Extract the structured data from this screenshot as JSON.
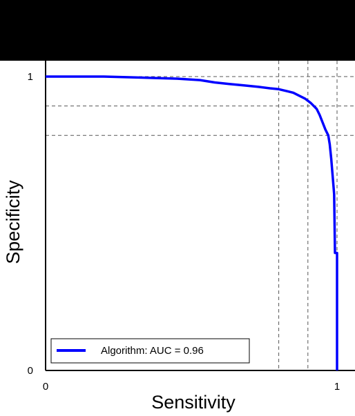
{
  "chart_data": {
    "type": "line",
    "xlabel": "Sensitivity",
    "ylabel": "Specificity",
    "xlim": [
      0,
      1
    ],
    "ylim": [
      0,
      1
    ],
    "x_ticks": [
      {
        "value": 0,
        "label": "0"
      },
      {
        "value": 1,
        "label": "1"
      }
    ],
    "y_ticks": [
      {
        "value": 0,
        "label": "0"
      },
      {
        "value": 1,
        "label": "1"
      }
    ],
    "reference_lines": {
      "vertical": [
        0.8,
        0.9,
        1.0
      ],
      "horizontal": [
        0.9,
        0.8,
        1.0
      ],
      "style": "dashed",
      "color": "#555555"
    },
    "legend": {
      "placement": "bottom-left",
      "entries": [
        "Algorithm: AUC = 0.96"
      ]
    },
    "series": [
      {
        "name": "Algorithm: AUC = 0.96",
        "color": "#0000ff",
        "points": [
          [
            0.0,
            1.0
          ],
          [
            0.2,
            1.0
          ],
          [
            0.31,
            0.997
          ],
          [
            0.45,
            0.993
          ],
          [
            0.53,
            0.988
          ],
          [
            0.58,
            0.98
          ],
          [
            0.63,
            0.975
          ],
          [
            0.68,
            0.97
          ],
          [
            0.73,
            0.965
          ],
          [
            0.77,
            0.96
          ],
          [
            0.8,
            0.957
          ],
          [
            0.83,
            0.95
          ],
          [
            0.85,
            0.945
          ],
          [
            0.87,
            0.935
          ],
          [
            0.89,
            0.925
          ],
          [
            0.91,
            0.91
          ],
          [
            0.93,
            0.89
          ],
          [
            0.94,
            0.87
          ],
          [
            0.95,
            0.845
          ],
          [
            0.96,
            0.82
          ],
          [
            0.97,
            0.8
          ],
          [
            0.975,
            0.77
          ],
          [
            0.98,
            0.72
          ],
          [
            0.985,
            0.66
          ],
          [
            0.99,
            0.6
          ],
          [
            0.993,
            0.4
          ],
          [
            1.0,
            0.4
          ],
          [
            1.0,
            0.0
          ]
        ]
      }
    ]
  }
}
